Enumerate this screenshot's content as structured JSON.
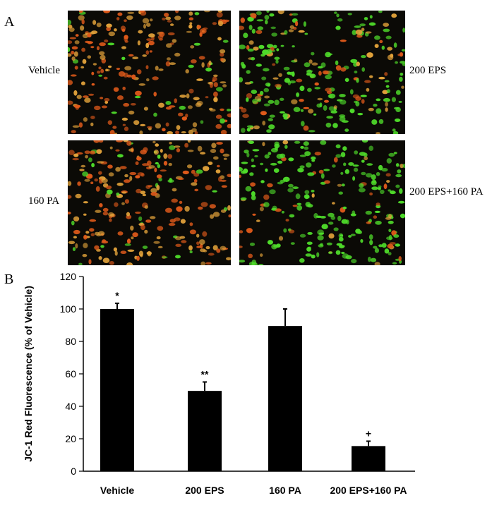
{
  "panel_a": {
    "letter": "A",
    "images": [
      {
        "label": "Vehicle",
        "red_fraction": 0.92
      },
      {
        "label": "200 EPS",
        "red_fraction": 0.35
      },
      {
        "label": "160 PA",
        "red_fraction": 0.85
      },
      {
        "label": "200 EPS+160 PA",
        "red_fraction": 0.18
      }
    ],
    "colors": {
      "red": "#e05a1a",
      "orange": "#e2a23a",
      "green": "#4fdc2a",
      "background": "#0b0a06"
    }
  },
  "panel_b": {
    "letter": "B"
  },
  "chart_data": {
    "type": "bar",
    "categories": [
      "Vehicle",
      "200 EPS",
      "160 PA",
      "200 EPS+160 PA"
    ],
    "values": [
      100,
      49.5,
      89.5,
      15.5
    ],
    "errors": [
      3.5,
      5.5,
      10.5,
      3
    ],
    "significance": [
      "*",
      "**",
      "",
      "+"
    ],
    "ylabel": "JC-1 Red Fluorescence  (% of Vehicle)",
    "ylim": [
      0,
      120
    ],
    "yticks": [
      "0",
      "20",
      "40",
      "60",
      "80",
      "100",
      "120"
    ],
    "bar_color": "#000000",
    "grid": false
  }
}
